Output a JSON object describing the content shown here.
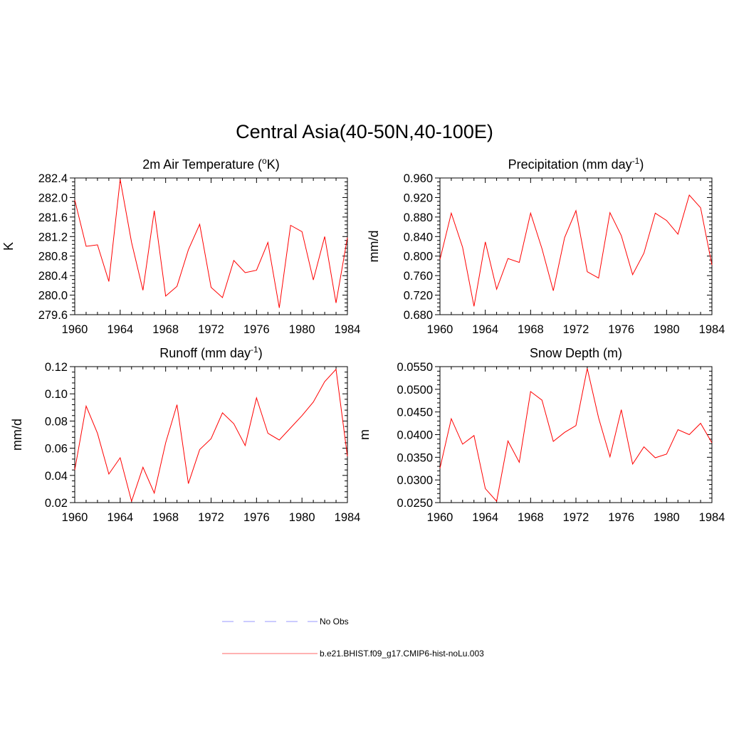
{
  "page": {
    "title": "Central Asia(40-50N,40-100E)"
  },
  "legend": {
    "items": [
      {
        "label": "No Obs",
        "color": "#9999ff",
        "style": "dashed"
      },
      {
        "label": "b.e21.BHIST.f09_g17.CMIP6-hist-noLu.003",
        "color": "#ff6666",
        "style": "solid"
      }
    ]
  },
  "chart_data": [
    {
      "type": "line",
      "title": "2m Air Temperature",
      "title_unit": "K",
      "title_superscript": "o",
      "ylabel": "K",
      "xlim": [
        1960,
        1984
      ],
      "ylim": [
        279.6,
        282.4
      ],
      "x_ticks": [
        "1960",
        "1964",
        "1968",
        "1972",
        "1976",
        "1980",
        "1984"
      ],
      "y_ticks": [
        "279.6",
        "280.0",
        "280.4",
        "280.8",
        "281.2",
        "281.6",
        "282.0",
        "282.4"
      ],
      "series": [
        {
          "color": "#ff0000",
          "x": [
            1960,
            1961,
            1962,
            1963,
            1964,
            1965,
            1966,
            1967,
            1968,
            1969,
            1970,
            1971,
            1972,
            1973,
            1974,
            1975,
            1976,
            1977,
            1978,
            1979,
            1980,
            1981,
            1982,
            1983,
            1984
          ],
          "values": [
            281.95,
            281.0,
            281.03,
            280.28,
            282.37,
            281.08,
            280.1,
            281.73,
            279.98,
            280.18,
            280.93,
            281.45,
            280.16,
            279.95,
            280.71,
            280.46,
            280.51,
            281.08,
            279.74,
            281.43,
            281.3,
            280.31,
            281.2,
            279.84,
            281.18
          ]
        }
      ]
    },
    {
      "type": "line",
      "title": "Precipitation (mm day",
      "title_superscript": "-1",
      "title_suffix": ")",
      "ylabel": "mm/d",
      "xlim": [
        1960,
        1984
      ],
      "ylim": [
        0.68,
        0.96
      ],
      "x_ticks": [
        "1960",
        "1964",
        "1968",
        "1972",
        "1976",
        "1980",
        "1984"
      ],
      "y_ticks": [
        "0.680",
        "0.720",
        "0.760",
        "0.800",
        "0.840",
        "0.880",
        "0.920",
        "0.960"
      ],
      "series": [
        {
          "color": "#ff0000",
          "x": [
            1960,
            1961,
            1962,
            1963,
            1964,
            1965,
            1966,
            1967,
            1968,
            1969,
            1970,
            1971,
            1972,
            1973,
            1974,
            1975,
            1976,
            1977,
            1978,
            1979,
            1980,
            1981,
            1982,
            1983,
            1984
          ],
          "values": [
            0.793,
            0.888,
            0.818,
            0.697,
            0.829,
            0.732,
            0.795,
            0.787,
            0.888,
            0.815,
            0.729,
            0.838,
            0.893,
            0.768,
            0.755,
            0.889,
            0.842,
            0.762,
            0.806,
            0.888,
            0.873,
            0.845,
            0.925,
            0.899,
            0.782
          ]
        }
      ]
    },
    {
      "type": "line",
      "title": "Runoff (mm day",
      "title_superscript": "-1",
      "title_suffix": ")",
      "ylabel": "mm/d",
      "xlim": [
        1960,
        1984
      ],
      "ylim": [
        0.02,
        0.12
      ],
      "x_ticks": [
        "1960",
        "1964",
        "1968",
        "1972",
        "1976",
        "1980",
        "1984"
      ],
      "y_ticks": [
        "0.02",
        "0.04",
        "0.06",
        "0.08",
        "0.10",
        "0.12"
      ],
      "series": [
        {
          "color": "#ff0000",
          "x": [
            1960,
            1961,
            1962,
            1963,
            1964,
            1965,
            1966,
            1967,
            1968,
            1969,
            1970,
            1971,
            1972,
            1973,
            1974,
            1975,
            1976,
            1977,
            1978,
            1979,
            1980,
            1981,
            1982,
            1983,
            1984
          ],
          "values": [
            0.044,
            0.091,
            0.071,
            0.041,
            0.053,
            0.021,
            0.046,
            0.027,
            0.064,
            0.092,
            0.034,
            0.059,
            0.067,
            0.086,
            0.078,
            0.062,
            0.097,
            0.071,
            0.066,
            0.075,
            0.084,
            0.094,
            0.109,
            0.118,
            0.054
          ]
        }
      ]
    },
    {
      "type": "line",
      "title": "Snow Depth (m)",
      "ylabel": "m",
      "xlim": [
        1960,
        1984
      ],
      "ylim": [
        0.025,
        0.055
      ],
      "x_ticks": [
        "1960",
        "1964",
        "1968",
        "1972",
        "1976",
        "1980",
        "1984"
      ],
      "y_ticks": [
        "0.0250",
        "0.0300",
        "0.0350",
        "0.0400",
        "0.0450",
        "0.0500",
        "0.0550"
      ],
      "series": [
        {
          "color": "#ff0000",
          "x": [
            1960,
            1961,
            1962,
            1963,
            1964,
            1965,
            1966,
            1967,
            1968,
            1969,
            1970,
            1971,
            1972,
            1973,
            1974,
            1975,
            1976,
            1977,
            1978,
            1979,
            1980,
            1981,
            1982,
            1983,
            1984
          ],
          "values": [
            0.0326,
            0.0435,
            0.0379,
            0.0398,
            0.0281,
            0.0253,
            0.0386,
            0.0339,
            0.0495,
            0.0476,
            0.0385,
            0.0405,
            0.042,
            0.0546,
            0.0437,
            0.0351,
            0.0455,
            0.0335,
            0.0373,
            0.0349,
            0.0357,
            0.0411,
            0.04,
            0.0425,
            0.0382
          ]
        }
      ]
    }
  ]
}
